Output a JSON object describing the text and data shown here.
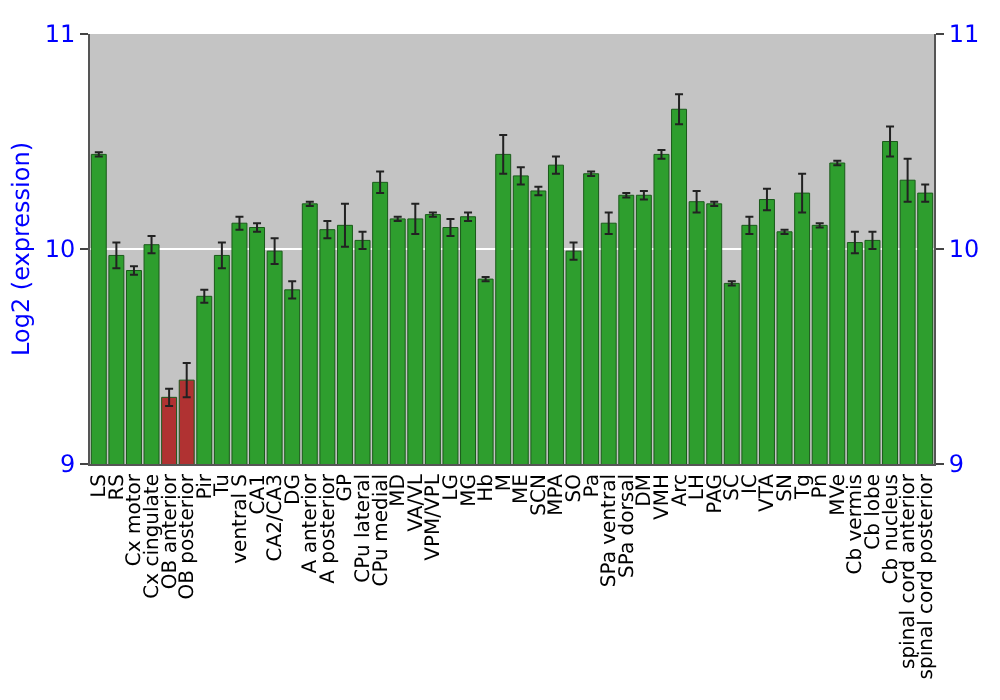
{
  "chart_data": {
    "type": "bar",
    "ylabel": "Log2 (expression)",
    "categories": [
      "LS",
      "RS",
      "Cx motor",
      "Cx cingulate",
      "OB anterior",
      "OB posterior",
      "Pir",
      "Tu",
      "ventral S",
      "CA1",
      "CA2/CA3",
      "DG",
      "A anterior",
      "A posterior",
      "GP",
      "CPu lateral",
      "CPu medial",
      "MD",
      "VA/VL",
      "VPM/VPL",
      "LG",
      "MG",
      "Hb",
      "M",
      "ME",
      "SCN",
      "MPA",
      "SO",
      "Pa",
      "SPa ventral",
      "SPa dorsal",
      "DM",
      "VMH",
      "Arc",
      "LH",
      "PAG",
      "SC",
      "IC",
      "VTA",
      "SN",
      "Tg",
      "Pn",
      "MVe",
      "Cb vermis",
      "Cb lobe",
      "Cb nucleus",
      "spinal cord anterior",
      "spinal cord posterior"
    ],
    "values": [
      10.44,
      9.97,
      9.9,
      10.02,
      9.31,
      9.39,
      9.78,
      9.97,
      10.12,
      10.1,
      9.99,
      9.81,
      10.21,
      10.09,
      10.11,
      10.04,
      10.31,
      10.14,
      10.14,
      10.16,
      10.1,
      10.15,
      9.86,
      10.44,
      10.34,
      10.27,
      10.39,
      9.99,
      10.35,
      10.12,
      10.25,
      10.25,
      10.44,
      10.65,
      10.22,
      10.21,
      9.84,
      10.11,
      10.23,
      10.08,
      10.26,
      10.11,
      10.4,
      10.03,
      10.04,
      10.5,
      10.32,
      10.26
    ],
    "errors": [
      0.01,
      0.06,
      0.02,
      0.04,
      0.04,
      0.08,
      0.03,
      0.06,
      0.03,
      0.02,
      0.06,
      0.04,
      0.01,
      0.04,
      0.1,
      0.04,
      0.05,
      0.01,
      0.07,
      0.01,
      0.04,
      0.02,
      0.01,
      0.09,
      0.04,
      0.02,
      0.04,
      0.04,
      0.01,
      0.05,
      0.01,
      0.02,
      0.02,
      0.07,
      0.05,
      0.01,
      0.01,
      0.04,
      0.05,
      0.01,
      0.09,
      0.01,
      0.01,
      0.05,
      0.04,
      0.07,
      0.1,
      0.04
    ],
    "colors": [
      "#2e9e2e",
      "#2e9e2e",
      "#2e9e2e",
      "#2e9e2e",
      "#b03232",
      "#b03232",
      "#2e9e2e",
      "#2e9e2e",
      "#2e9e2e",
      "#2e9e2e",
      "#2e9e2e",
      "#2e9e2e",
      "#2e9e2e",
      "#2e9e2e",
      "#2e9e2e",
      "#2e9e2e",
      "#2e9e2e",
      "#2e9e2e",
      "#2e9e2e",
      "#2e9e2e",
      "#2e9e2e",
      "#2e9e2e",
      "#2e9e2e",
      "#2e9e2e",
      "#2e9e2e",
      "#2e9e2e",
      "#2e9e2e",
      "#2e9e2e",
      "#2e9e2e",
      "#2e9e2e",
      "#2e9e2e",
      "#2e9e2e",
      "#2e9e2e",
      "#2e9e2e",
      "#2e9e2e",
      "#2e9e2e",
      "#2e9e2e",
      "#2e9e2e",
      "#2e9e2e",
      "#2e9e2e",
      "#2e9e2e",
      "#2e9e2e",
      "#2e9e2e",
      "#2e9e2e",
      "#2e9e2e",
      "#2e9e2e",
      "#2e9e2e",
      "#2e9e2e"
    ],
    "ylim": [
      9,
      11
    ],
    "yticks": [
      9,
      10,
      11
    ],
    "y2lim": [
      9,
      11
    ],
    "y2ticks": [
      9,
      10,
      11
    ],
    "grid": "y"
  }
}
